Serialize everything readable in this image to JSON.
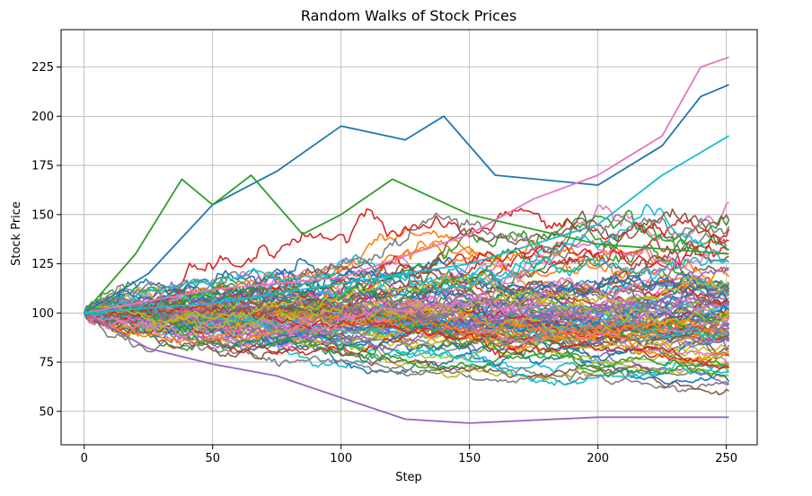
{
  "chart_data": {
    "type": "line",
    "title": "Random Walks of Stock Prices",
    "xlabel": "Step",
    "ylabel": "Stock Price",
    "xlim": [
      -9,
      262
    ],
    "ylim": [
      33,
      244
    ],
    "x_ticks": [
      0,
      50,
      100,
      150,
      200,
      250
    ],
    "y_ticks": [
      50,
      75,
      100,
      125,
      150,
      175,
      200,
      225
    ],
    "x_tick_labels": [
      "0",
      "50",
      "100",
      "150",
      "200",
      "250"
    ],
    "y_tick_labels": [
      "50",
      "75",
      "100",
      "125",
      "150",
      "175",
      "200",
      "225"
    ],
    "grid": true,
    "legend": "none",
    "num_series": 100,
    "steps": 252,
    "start_value": 100,
    "palette": [
      "#1f77b4",
      "#ff7f0e",
      "#2ca02c",
      "#d62728",
      "#9467bd",
      "#8c564b",
      "#e377c2",
      "#7f7f7f",
      "#bcbd22",
      "#17becf"
    ],
    "series_samples": [
      {
        "color": "#1f77b4",
        "x": [
          0,
          25,
          50,
          75,
          100,
          125,
          140,
          160,
          200,
          225,
          240,
          251
        ],
        "values": [
          100,
          120,
          155,
          172,
          195,
          188,
          200,
          170,
          165,
          185,
          210,
          216
        ]
      },
      {
        "color": "#e377c2",
        "x": [
          0,
          50,
          100,
          150,
          175,
          200,
          225,
          240,
          251
        ],
        "values": [
          100,
          112,
          118,
          140,
          158,
          170,
          190,
          225,
          230
        ]
      },
      {
        "color": "#2ca02c",
        "x": [
          0,
          20,
          38,
          50,
          65,
          85,
          100,
          120,
          150,
          200,
          251
        ],
        "values": [
          100,
          130,
          168,
          155,
          170,
          140,
          150,
          168,
          150,
          135,
          130
        ]
      },
      {
        "color": "#9467bd",
        "x": [
          0,
          25,
          50,
          75,
          100,
          125,
          150,
          200,
          251
        ],
        "values": [
          100,
          82,
          74,
          68,
          57,
          46,
          44,
          47,
          47
        ]
      },
      {
        "color": "#17becf",
        "x": [
          0,
          50,
          100,
          150,
          200,
          225,
          251
        ],
        "values": [
          100,
          105,
          115,
          125,
          145,
          170,
          190
        ]
      }
    ]
  }
}
